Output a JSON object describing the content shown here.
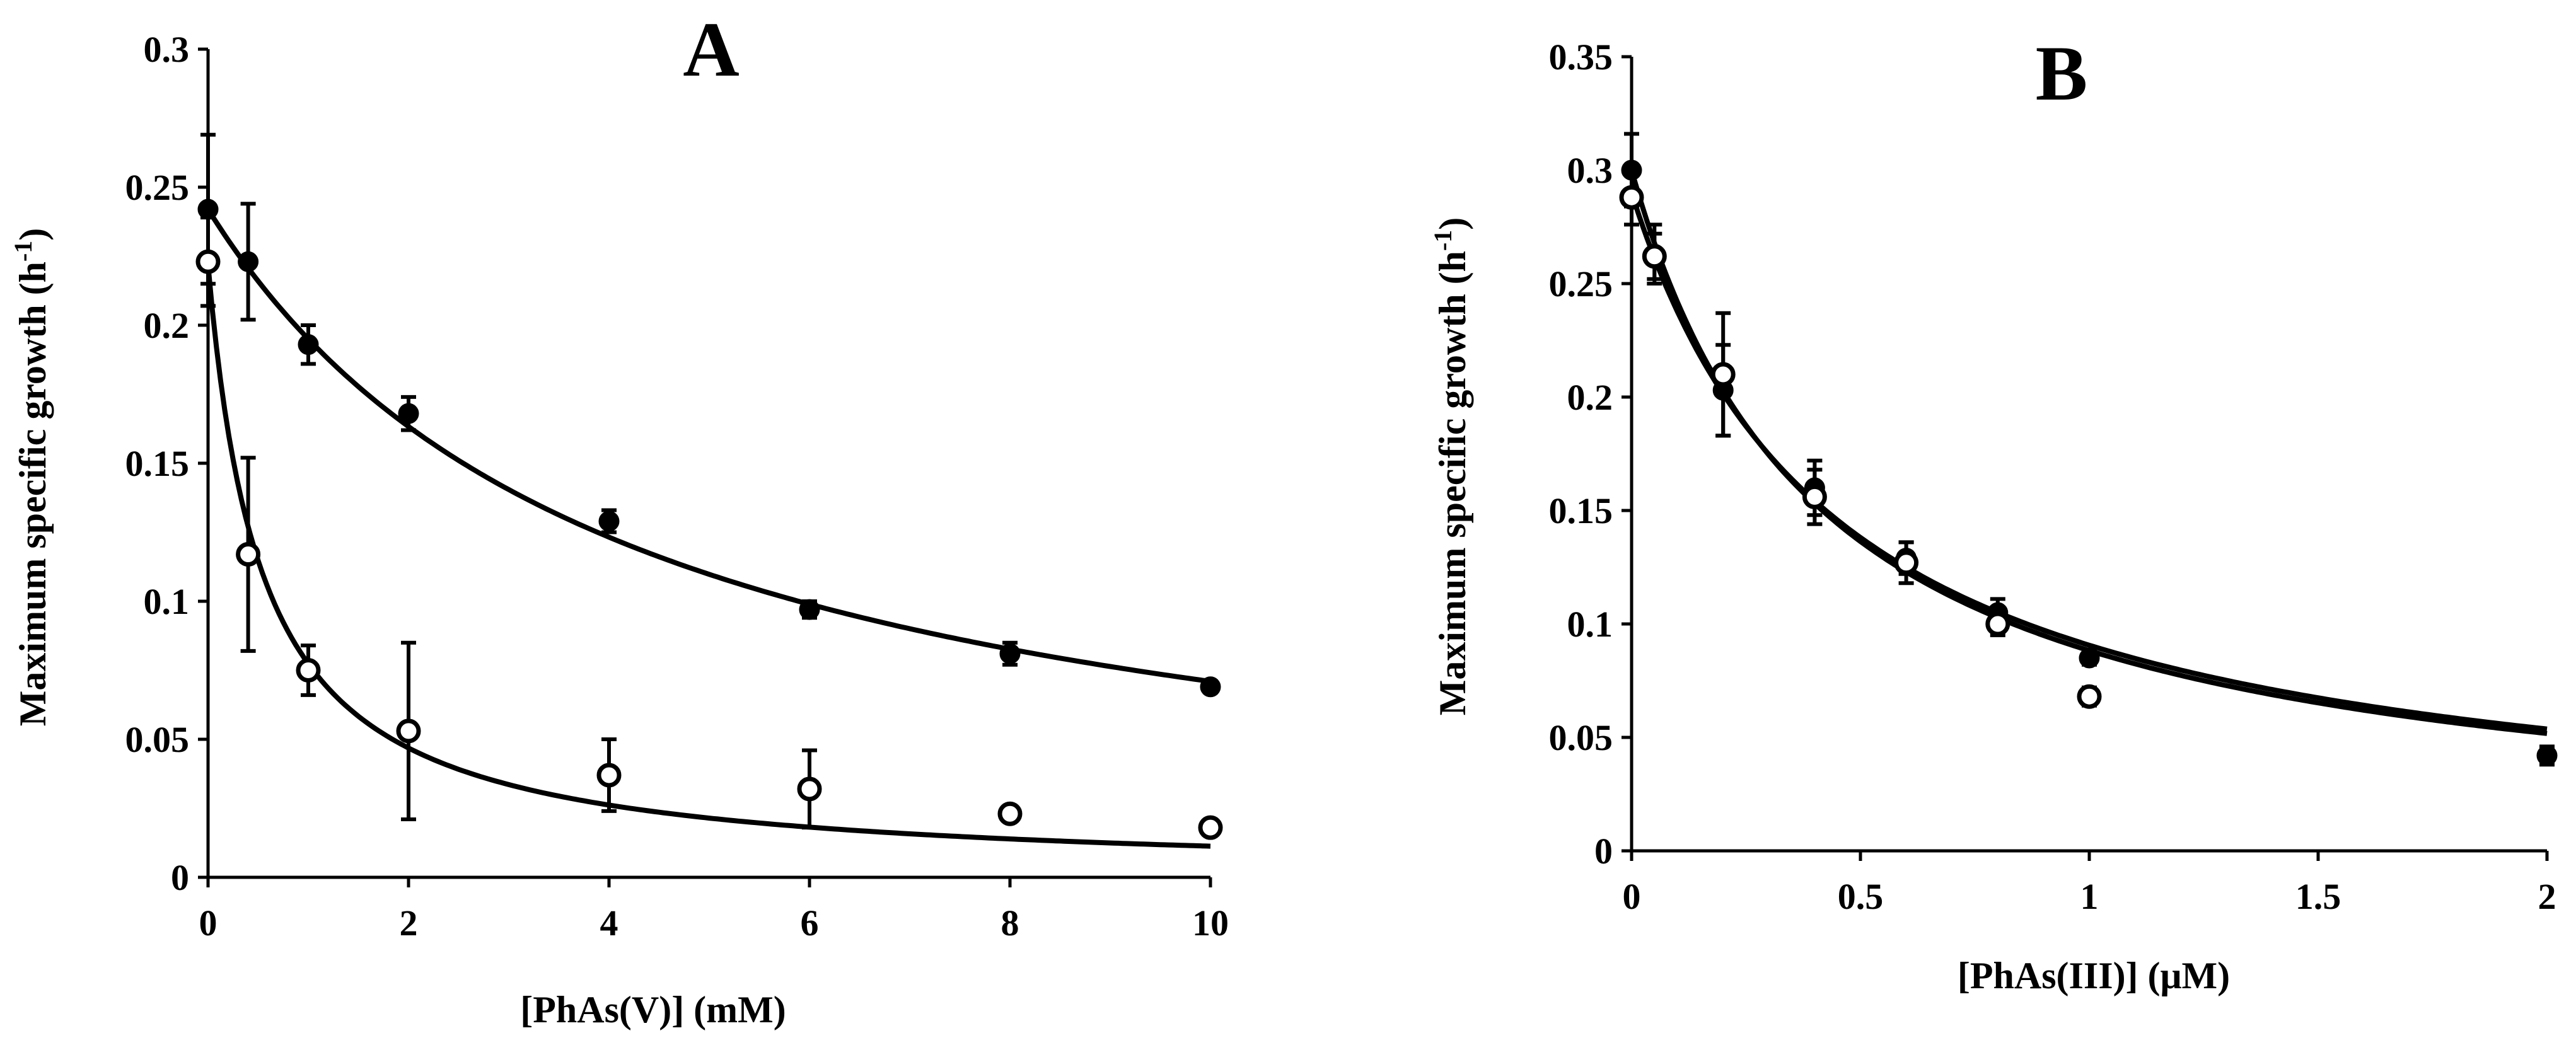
{
  "chart_data": [
    {
      "type": "scatter",
      "panel": "A",
      "title": "A",
      "xlabel": "[PhAs(V)] (mM)",
      "ylabel": "Maximum specific growth (h-1)",
      "ylabel_main": "Maximum specific growth (h",
      "ylabel_sup": "-1",
      "ylabel_close": ")",
      "xlim": [
        0,
        10
      ],
      "ylim": [
        0,
        0.3
      ],
      "xticks": [
        0,
        2,
        4,
        6,
        8,
        10
      ],
      "xtick_labels": [
        "0",
        "2",
        "4",
        "6",
        "8",
        "10"
      ],
      "yticks": [
        0,
        0.05,
        0.1,
        0.15,
        0.2,
        0.25,
        0.3
      ],
      "ytick_labels": [
        "0",
        "0.05",
        "0.1",
        "0.15",
        "0.2",
        "0.25",
        "0.3"
      ],
      "series": [
        {
          "name": "filled circles",
          "marker": "filled",
          "x": [
            0,
            0.4,
            1,
            2,
            4,
            6,
            8,
            10
          ],
          "y": [
            0.242,
            0.223,
            0.193,
            0.168,
            0.129,
            0.097,
            0.081,
            0.069
          ],
          "err": [
            0.027,
            0.021,
            0.007,
            0.006,
            0.004,
            0.003,
            0.004,
            0.002
          ],
          "fit": {
            "model": "hyperbolic",
            "y0": 0.242,
            "k": 0.241
          }
        },
        {
          "name": "open circles",
          "marker": "open",
          "x": [
            0,
            0.4,
            1,
            2,
            4,
            6,
            8,
            10
          ],
          "y": [
            0.223,
            0.117,
            0.075,
            0.053,
            0.037,
            0.032,
            0.023,
            0.018
          ],
          "err": [
            0.016,
            0.035,
            0.009,
            0.032,
            0.013,
            0.014,
            0.002,
            0.002
          ],
          "fit": {
            "model": "hyperbolic",
            "y0": 0.222,
            "k": 1.87
          }
        }
      ]
    },
    {
      "type": "scatter",
      "panel": "B",
      "title": "B",
      "xlabel": "[PhAs(III)] (μM)",
      "ylabel": "Maximum specific growth (h-1)",
      "ylabel_main": "Maximum specific growth (h",
      "ylabel_sup": "-1",
      "ylabel_close": ")",
      "xlim": [
        0,
        2
      ],
      "ylim": [
        0,
        0.35
      ],
      "xticks": [
        0,
        0.5,
        1,
        1.5,
        2
      ],
      "xtick_labels": [
        "0",
        "0.5",
        "1",
        "1.5",
        "2"
      ],
      "yticks": [
        0,
        0.05,
        0.1,
        0.15,
        0.2,
        0.25,
        0.3,
        0.35
      ],
      "ytick_labels": [
        "0",
        "0.05",
        "0.1",
        "0.15",
        "0.2",
        "0.25",
        "0.3",
        "0.35"
      ],
      "series": [
        {
          "name": "filled circles",
          "marker": "filled",
          "x": [
            0,
            0.05,
            0.2,
            0.4,
            0.6,
            0.8,
            1,
            2
          ],
          "y": [
            0.3,
            0.263,
            0.203,
            0.16,
            0.129,
            0.105,
            0.085,
            0.042
          ],
          "err": [
            0.016,
            0.013,
            0.02,
            0.012,
            0.007,
            0.006,
            0.003,
            0.004
          ],
          "fit": {
            "model": "hyperbolic",
            "y0": 0.3,
            "k": 2.4
          }
        },
        {
          "name": "open circles",
          "marker": "open",
          "x": [
            0,
            0.05,
            0.2,
            0.4,
            0.6,
            0.8,
            1
          ],
          "y": [
            0.288,
            0.262,
            0.21,
            0.156,
            0.127,
            0.1,
            0.068
          ],
          "err": [
            0.012,
            0.01,
            0.027,
            0.012,
            0.009,
            0.005,
            0.004
          ],
          "fit": {
            "model": "hyperbolic",
            "y0": 0.29,
            "k": 2.2
          }
        }
      ]
    }
  ]
}
